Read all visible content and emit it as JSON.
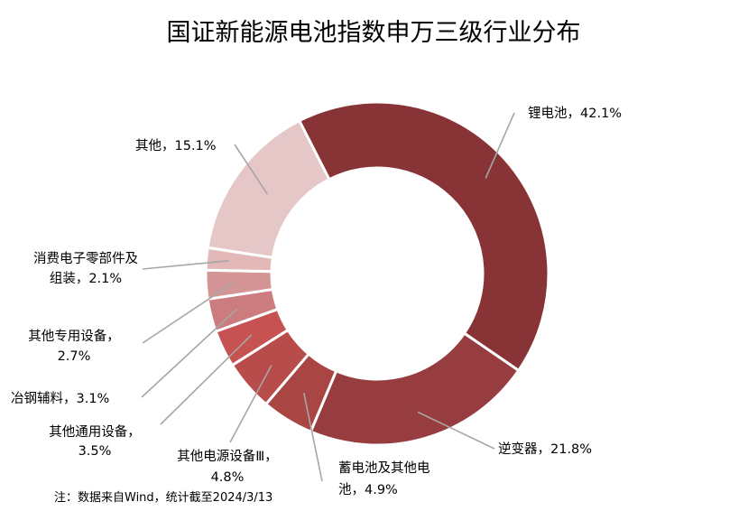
{
  "chart_data": {
    "type": "pie",
    "title": "国证新能源电池指数申万三级行业分布",
    "slices": [
      {
        "name": "锂电池",
        "value": 42.1,
        "color": "#883436",
        "label": [
          "锂电池，42.1%"
        ]
      },
      {
        "name": "逆变器",
        "value": 21.8,
        "color": "#973d3f",
        "label": [
          "逆变器，21.8%"
        ]
      },
      {
        "name": "蓄电池及其他电池",
        "value": 4.9,
        "color": "#a94543",
        "label": [
          "蓄电池及其他电",
          "池，4.9%"
        ]
      },
      {
        "name": "其他电源设备Ⅲ",
        "value": 4.8,
        "color": "#b74c4b",
        "label": [
          "其他电源设备Ⅲ，",
          "4.8%"
        ]
      },
      {
        "name": "其他通用设备",
        "value": 3.5,
        "color": "#c65352",
        "label": [
          "其他通用设备，",
          "3.5%"
        ]
      },
      {
        "name": "冶钢辅料",
        "value": 3.1,
        "color": "#cc7c7e",
        "label": [
          "冶钢辅料，3.1%"
        ]
      },
      {
        "name": "其他专用设备",
        "value": 2.7,
        "color": "#d49596",
        "label": [
          "其他专用设备，",
          "2.7%"
        ]
      },
      {
        "name": "消费电子零部件及组装",
        "value": 2.1,
        "color": "#e2b8b9",
        "label": [
          "消费电子零部件及",
          "组装，2.1%"
        ]
      },
      {
        "name": "其他",
        "value": 15.1,
        "color": "#e6c7c8",
        "label": [
          "其他，15.1%"
        ]
      }
    ],
    "note": "注：数据来自Wind，统计截至2024/3/13"
  }
}
